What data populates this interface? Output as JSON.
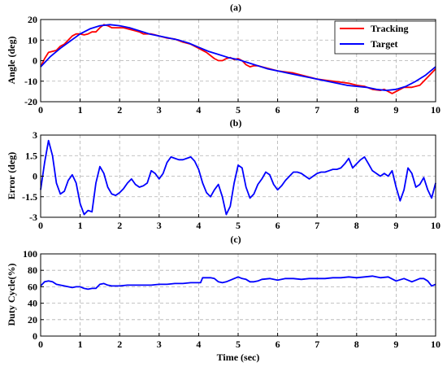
{
  "chart_data": [
    {
      "type": "line",
      "title": "(a)",
      "xlabel": "",
      "ylabel": "Angle (deg)",
      "xlim": [
        0,
        10
      ],
      "ylim": [
        -20,
        20
      ],
      "xticks": [
        "0",
        "1",
        "2",
        "3",
        "4",
        "5",
        "6",
        "7",
        "8",
        "9",
        "10"
      ],
      "yticks": [
        "20",
        "10",
        "0",
        "-10",
        "-20"
      ],
      "ytick_values": [
        20,
        10,
        0,
        -10,
        -20
      ],
      "grid": true,
      "legend_position": "top-right",
      "series": [
        {
          "name": "Tracking",
          "color": "#ff0000",
          "x": [
            0,
            0.1,
            0.2,
            0.3,
            0.4,
            0.5,
            0.6,
            0.7,
            0.8,
            0.9,
            1.0,
            1.1,
            1.2,
            1.3,
            1.4,
            1.5,
            1.6,
            1.7,
            1.8,
            1.9,
            2.0,
            2.1,
            2.2,
            2.3,
            2.4,
            2.5,
            2.6,
            2.7,
            2.8,
            2.9,
            3.0,
            3.2,
            3.4,
            3.6,
            3.8,
            4.0,
            4.2,
            4.4,
            4.5,
            4.6,
            4.7,
            4.8,
            4.9,
            5.0,
            5.1,
            5.2,
            5.3,
            5.4,
            5.5,
            5.6,
            5.8,
            6.0,
            6.2,
            6.4,
            6.6,
            6.8,
            7.0,
            7.2,
            7.4,
            7.6,
            7.8,
            8.0,
            8.2,
            8.4,
            8.6,
            8.7,
            8.8,
            8.9,
            9.0,
            9.1,
            9.2,
            9.4,
            9.6,
            9.8,
            10.0
          ],
          "values": [
            -3,
            1,
            4,
            4.5,
            5,
            7,
            8,
            10,
            12,
            13,
            13,
            12.5,
            13,
            14,
            14,
            16,
            17.5,
            17,
            16,
            16,
            16,
            16,
            15.5,
            15,
            14.5,
            14,
            13,
            13,
            13,
            12.5,
            12,
            11,
            10.5,
            9,
            8,
            6,
            4,
            1,
            0,
            0,
            1,
            1.5,
            0.5,
            1,
            0,
            -2,
            -3,
            -2.5,
            -2.5,
            -3,
            -4,
            -5,
            -5.5,
            -6,
            -7,
            -8,
            -9,
            -9.5,
            -10,
            -10.5,
            -11,
            -12,
            -12.5,
            -14,
            -14.5,
            -14,
            -15,
            -16,
            -15,
            -14,
            -13,
            -13,
            -12,
            -8,
            -4
          ]
        },
        {
          "name": "Target",
          "color": "#0000ff",
          "x": [
            0,
            0.25,
            0.5,
            0.75,
            1.0,
            1.25,
            1.5,
            1.75,
            2.0,
            2.25,
            2.5,
            2.75,
            3.0,
            3.25,
            3.5,
            3.75,
            4.0,
            4.25,
            4.5,
            4.75,
            5.0,
            5.25,
            5.5,
            5.75,
            6.0,
            6.25,
            6.5,
            6.75,
            7.0,
            7.25,
            7.5,
            7.75,
            8.0,
            8.25,
            8.5,
            8.75,
            9.0,
            9.25,
            9.5,
            9.75,
            10.0
          ],
          "values": [
            -3,
            2,
            6,
            9.5,
            13,
            15.5,
            17,
            17.5,
            17,
            16,
            14.5,
            13,
            12,
            11,
            10,
            8.5,
            6.5,
            4.5,
            3,
            1.5,
            0.5,
            -1,
            -2.5,
            -4,
            -5,
            -6,
            -7,
            -8,
            -9,
            -10,
            -11,
            -12,
            -12.5,
            -13,
            -14,
            -14.5,
            -14,
            -12.5,
            -10,
            -7,
            -3
          ]
        }
      ]
    },
    {
      "type": "line",
      "title": "(b)",
      "xlabel": "",
      "ylabel": "Error (deg)",
      "xlim": [
        0,
        10
      ],
      "ylim": [
        -3,
        3
      ],
      "xticks": [
        "0",
        "1",
        "2",
        "3",
        "4",
        "5",
        "6",
        "7",
        "8",
        "9",
        "10"
      ],
      "yticks": [
        "3",
        "1.5",
        "0",
        "-1.5",
        "-3"
      ],
      "ytick_values": [
        3,
        1.5,
        0,
        -1.5,
        -3
      ],
      "grid": true,
      "series": [
        {
          "color": "#0000ff",
          "x": [
            0,
            0.1,
            0.2,
            0.3,
            0.4,
            0.5,
            0.6,
            0.7,
            0.8,
            0.9,
            1.0,
            1.1,
            1.2,
            1.3,
            1.4,
            1.5,
            1.6,
            1.7,
            1.8,
            1.9,
            2.0,
            2.1,
            2.2,
            2.3,
            2.4,
            2.5,
            2.6,
            2.7,
            2.8,
            2.9,
            3.0,
            3.1,
            3.2,
            3.3,
            3.4,
            3.5,
            3.6,
            3.7,
            3.8,
            3.9,
            4.0,
            4.1,
            4.2,
            4.3,
            4.4,
            4.5,
            4.6,
            4.7,
            4.8,
            4.9,
            5.0,
            5.1,
            5.2,
            5.3,
            5.4,
            5.5,
            5.6,
            5.7,
            5.8,
            5.9,
            6.0,
            6.1,
            6.2,
            6.3,
            6.4,
            6.5,
            6.6,
            6.7,
            6.8,
            6.9,
            7.0,
            7.1,
            7.2,
            7.3,
            7.4,
            7.5,
            7.6,
            7.7,
            7.8,
            7.9,
            8.0,
            8.1,
            8.2,
            8.3,
            8.4,
            8.5,
            8.6,
            8.7,
            8.8,
            8.9,
            9.0,
            9.1,
            9.2,
            9.3,
            9.4,
            9.5,
            9.6,
            9.7,
            9.8,
            9.9,
            10.0
          ],
          "values": [
            -1,
            1,
            2.6,
            1.5,
            -0.5,
            -1.3,
            -1.1,
            -0.3,
            0.1,
            -0.5,
            -2,
            -2.8,
            -2.5,
            -2.6,
            -0.5,
            0.7,
            0.2,
            -0.8,
            -1.3,
            -1.4,
            -1.2,
            -0.9,
            -0.5,
            -0.2,
            -0.6,
            -0.8,
            -0.7,
            -0.5,
            0.4,
            0.2,
            -0.2,
            0.2,
            1,
            1.4,
            1.3,
            1.2,
            1.2,
            1.3,
            1.4,
            1.1,
            0.5,
            -0.5,
            -1.2,
            -1.5,
            -1,
            -0.6,
            -1.5,
            -2.8,
            -2.2,
            -0.5,
            0.8,
            0.6,
            -0.8,
            -1.6,
            -1.3,
            -0.6,
            -0.2,
            0.3,
            0.1,
            -0.6,
            -1,
            -0.7,
            -0.3,
            0,
            0.3,
            0.3,
            0.2,
            0,
            -0.2,
            0,
            0.2,
            0.3,
            0.3,
            0.4,
            0.5,
            0.5,
            0.6,
            0.9,
            1.3,
            0.6,
            0.9,
            1.2,
            1.4,
            0.9,
            0.4,
            0.2,
            0,
            0.2,
            0,
            0.4,
            -0.8,
            -1.8,
            -1,
            0.6,
            0.2,
            -0.8,
            -0.6,
            -0.1,
            -1,
            -1.6,
            -0.5
          ]
        }
      ]
    },
    {
      "type": "line",
      "title": "(c)",
      "xlabel": "Time (sec)",
      "ylabel": "Duty Cycle(%)",
      "xlim": [
        0,
        10
      ],
      "ylim": [
        0,
        100
      ],
      "xticks": [
        "0",
        "1",
        "2",
        "3",
        "4",
        "5",
        "6",
        "7",
        "8",
        "9",
        "10"
      ],
      "yticks": [
        "100",
        "80",
        "60",
        "40",
        "20",
        "0"
      ],
      "ytick_values": [
        100,
        80,
        60,
        40,
        20,
        0
      ],
      "grid": true,
      "series": [
        {
          "color": "#0000ff",
          "x": [
            0,
            0.1,
            0.2,
            0.3,
            0.4,
            0.5,
            0.6,
            0.7,
            0.8,
            0.9,
            1.0,
            1.1,
            1.2,
            1.3,
            1.4,
            1.5,
            1.6,
            1.7,
            1.8,
            1.9,
            2.0,
            2.2,
            2.4,
            2.6,
            2.8,
            3.0,
            3.2,
            3.4,
            3.6,
            3.8,
            4.0,
            4.05,
            4.1,
            4.2,
            4.3,
            4.4,
            4.5,
            4.6,
            4.7,
            4.8,
            4.9,
            5.0,
            5.1,
            5.2,
            5.3,
            5.4,
            5.5,
            5.6,
            5.8,
            6.0,
            6.2,
            6.4,
            6.6,
            6.8,
            7.0,
            7.2,
            7.4,
            7.6,
            7.8,
            8.0,
            8.2,
            8.4,
            8.6,
            8.8,
            9.0,
            9.2,
            9.4,
            9.6,
            9.7,
            9.8,
            9.9,
            10.0
          ],
          "values": [
            61,
            66,
            67,
            66,
            63,
            62,
            61,
            60,
            59,
            60,
            60,
            58,
            57,
            58,
            58,
            63,
            64,
            62,
            61,
            61,
            61,
            62,
            62,
            62,
            62,
            63,
            63,
            64,
            64,
            65,
            65,
            65,
            71,
            71,
            71,
            70,
            66,
            65,
            66,
            68,
            70,
            72,
            70,
            69,
            66,
            66,
            67,
            69,
            70,
            68,
            70,
            70,
            69,
            70,
            70,
            70,
            71,
            71,
            72,
            71,
            72,
            73,
            71,
            72,
            67,
            70,
            66,
            70,
            70,
            67,
            61,
            63
          ]
        }
      ]
    }
  ]
}
